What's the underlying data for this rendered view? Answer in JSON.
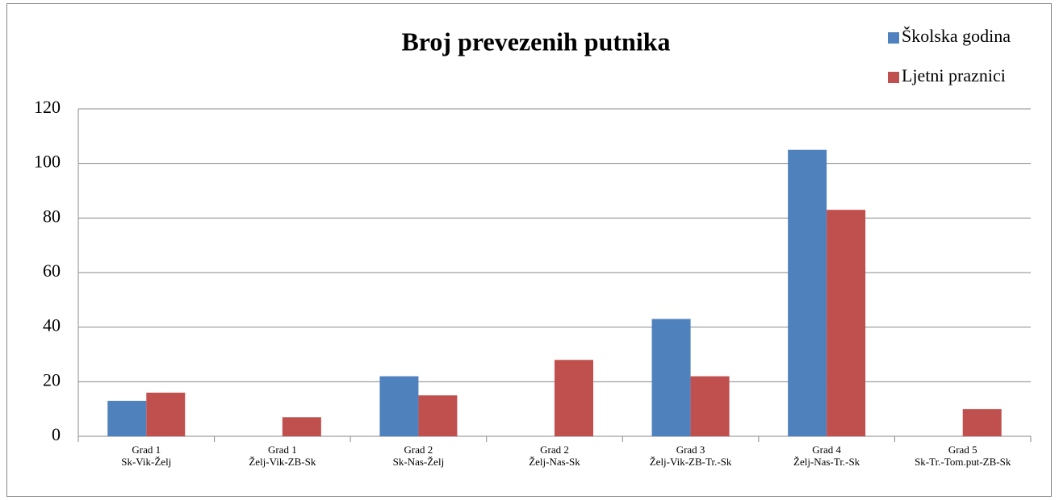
{
  "chart_data": {
    "type": "bar",
    "title": "Broj prevezenih putnika",
    "categories": [
      [
        "Grad 1",
        "Sk-Vik-Želj"
      ],
      [
        "Grad 1",
        "Želj-Vik-ZB-Sk"
      ],
      [
        "Grad 2",
        "Sk-Nas-Želj"
      ],
      [
        "Grad 2",
        "Želj-Nas-Sk"
      ],
      [
        "Grad 3",
        "Želj-Vik-ZB-Tr.-Sk"
      ],
      [
        "Grad 4",
        "Želj-Nas-Tr.-Sk"
      ],
      [
        "Grad 5",
        "Sk-Tr.-Tom.put-ZB-Sk"
      ]
    ],
    "series": [
      {
        "name": "Školska godina",
        "color": "#4f81bd",
        "values": [
          13,
          null,
          22,
          null,
          43,
          105,
          null
        ]
      },
      {
        "name": "Ljetni praznici",
        "color": "#c0504d",
        "values": [
          16,
          7,
          15,
          28,
          22,
          83,
          10
        ]
      }
    ],
    "ylim": [
      0,
      120
    ],
    "yticks": [
      0,
      20,
      40,
      60,
      80,
      100,
      120
    ],
    "grid": true,
    "legend": "top-right"
  }
}
